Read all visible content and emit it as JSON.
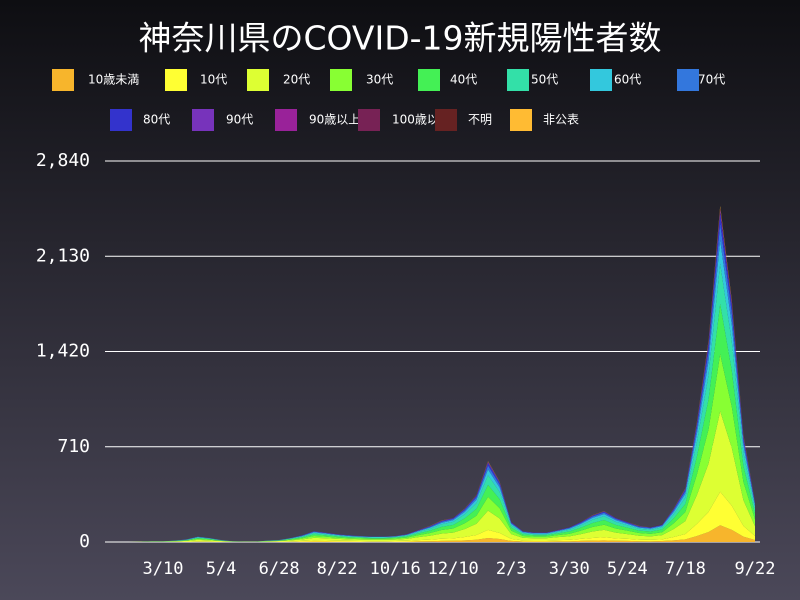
{
  "chart_data": {
    "type": "stacked-area",
    "title": "神奈川県のCOVID-19新規陽性者数",
    "categories": [
      null,
      null,
      null,
      null,
      null,
      "3/10",
      null,
      null,
      null,
      null,
      "5/4",
      null,
      null,
      null,
      null,
      "6/28",
      null,
      null,
      null,
      null,
      "8/22",
      null,
      null,
      null,
      null,
      "10/16",
      null,
      null,
      null,
      null,
      "12/10",
      null,
      null,
      null,
      null,
      "2/3",
      null,
      null,
      null,
      null,
      "3/30",
      null,
      null,
      null,
      null,
      "5/24",
      null,
      null,
      null,
      null,
      "7/18",
      null,
      null,
      null,
      null,
      null,
      "9/22"
    ],
    "ylim": [
      0,
      2840
    ],
    "yticks": [
      0,
      710,
      {
        "value": 1420,
        "label": "1,420"
      },
      {
        "value": 2130,
        "label": "2,130"
      },
      {
        "value": 2840,
        "label": "2,840"
      }
    ],
    "grid": true,
    "series": [
      {
        "name": "10歳未満",
        "color": "#f7b52c",
        "values": [
          0,
          0,
          0,
          0,
          0,
          0,
          1,
          1,
          2,
          2,
          1,
          0,
          0,
          0,
          1,
          1,
          2,
          3,
          4,
          4,
          3,
          3,
          2,
          2,
          2,
          2,
          3,
          5,
          6,
          8,
          9,
          12,
          17,
          30,
          22,
          8,
          4,
          4,
          4,
          5,
          5,
          8,
          10,
          12,
          9,
          8,
          6,
          5,
          7,
          12,
          20,
          45,
          75,
          125,
          90,
          40,
          15
        ]
      },
      {
        "name": "10代",
        "color": "#ffff33",
        "values": [
          0,
          0,
          0,
          0,
          1,
          1,
          1,
          2,
          4,
          3,
          2,
          1,
          0,
          0,
          1,
          2,
          3,
          5,
          8,
          7,
          6,
          5,
          5,
          4,
          4,
          5,
          6,
          9,
          12,
          16,
          18,
          25,
          35,
          60,
          45,
          15,
          8,
          7,
          7,
          9,
          11,
          15,
          20,
          23,
          18,
          15,
          12,
          11,
          13,
          25,
          40,
          90,
          150,
          250,
          180,
          80,
          30
        ]
      },
      {
        "name": "20代",
        "color": "#ddff33",
        "values": [
          0,
          0,
          0,
          1,
          1,
          1,
          2,
          5,
          10,
          7,
          4,
          1,
          1,
          1,
          2,
          4,
          7,
          12,
          19,
          17,
          14,
          12,
          11,
          10,
          10,
          11,
          14,
          22,
          29,
          38,
          43,
          60,
          84,
          144,
          108,
          36,
          19,
          17,
          17,
          22,
          26,
          36,
          48,
          55,
          43,
          36,
          29,
          26,
          31,
          60,
          96,
          216,
          360,
          600,
          432,
          192,
          72
        ]
      },
      {
        "name": "30代",
        "color": "#88ff33",
        "values": [
          0,
          0,
          0,
          1,
          1,
          1,
          2,
          3,
          7,
          5,
          2,
          1,
          1,
          1,
          2,
          2,
          5,
          8,
          14,
          12,
          10,
          8,
          8,
          7,
          7,
          8,
          10,
          15,
          20,
          27,
          31,
          43,
          60,
          102,
          77,
          26,
          14,
          12,
          12,
          15,
          19,
          26,
          34,
          39,
          31,
          26,
          20,
          19,
          22,
          43,
          68,
          153,
          255,
          425,
          306,
          136,
          51
        ]
      },
      {
        "name": "40代",
        "color": "#44f055",
        "values": [
          0,
          0,
          0,
          0,
          1,
          1,
          2,
          3,
          6,
          5,
          2,
          1,
          1,
          1,
          2,
          2,
          5,
          7,
          12,
          10,
          9,
          7,
          7,
          6,
          6,
          7,
          9,
          13,
          18,
          24,
          27,
          37,
          52,
          90,
          68,
          22,
          12,
          10,
          10,
          13,
          17,
          22,
          30,
          35,
          27,
          22,
          18,
          17,
          20,
          37,
          60,
          135,
          225,
          375,
          270,
          120,
          45
        ]
      },
      {
        "name": "50代",
        "color": "#33e0a8",
        "values": [
          0,
          0,
          0,
          0,
          1,
          1,
          1,
          2,
          5,
          4,
          2,
          1,
          0,
          0,
          1,
          2,
          4,
          6,
          10,
          8,
          7,
          6,
          5,
          5,
          5,
          5,
          7,
          11,
          14,
          19,
          22,
          30,
          42,
          72,
          54,
          18,
          10,
          8,
          8,
          11,
          13,
          18,
          24,
          28,
          22,
          18,
          14,
          13,
          16,
          30,
          48,
          108,
          180,
          300,
          216,
          96,
          36
        ]
      },
      {
        "name": "60代",
        "color": "#33c8dd",
        "values": [
          0,
          0,
          0,
          0,
          0,
          0,
          1,
          2,
          3,
          2,
          1,
          0,
          0,
          0,
          1,
          1,
          2,
          4,
          6,
          5,
          4,
          4,
          3,
          3,
          3,
          3,
          4,
          6,
          8,
          11,
          13,
          18,
          25,
          42,
          31,
          10,
          6,
          5,
          5,
          6,
          8,
          10,
          14,
          16,
          13,
          10,
          8,
          8,
          9,
          18,
          28,
          63,
          105,
          175,
          126,
          56,
          21
        ]
      },
      {
        "name": "70代",
        "color": "#3377dd",
        "values": [
          0,
          0,
          0,
          0,
          0,
          0,
          0,
          1,
          2,
          1,
          1,
          0,
          0,
          0,
          0,
          1,
          1,
          3,
          4,
          4,
          3,
          3,
          2,
          2,
          2,
          2,
          3,
          4,
          6,
          8,
          9,
          13,
          18,
          30,
          23,
          7,
          4,
          4,
          4,
          4,
          6,
          7,
          10,
          11,
          9,
          7,
          6,
          6,
          6,
          13,
          20,
          45,
          75,
          125,
          90,
          40,
          15
        ]
      },
      {
        "name": "80代",
        "color": "#3333cc",
        "values": [
          0,
          0,
          0,
          0,
          0,
          0,
          0,
          1,
          1,
          1,
          0,
          0,
          0,
          0,
          0,
          0,
          1,
          2,
          2,
          2,
          2,
          2,
          1,
          1,
          1,
          1,
          2,
          3,
          4,
          5,
          5,
          8,
          11,
          18,
          14,
          5,
          2,
          2,
          2,
          3,
          3,
          5,
          6,
          7,
          5,
          5,
          4,
          3,
          4,
          8,
          12,
          27,
          45,
          75,
          54,
          24,
          9
        ]
      },
      {
        "name": "90代",
        "color": "#7733bb",
        "values": [
          0,
          0,
          0,
          0,
          0,
          0,
          0,
          0,
          0,
          0,
          0,
          0,
          0,
          0,
          0,
          0,
          0,
          0,
          1,
          1,
          1,
          0,
          1,
          0,
          0,
          1,
          1,
          1,
          1,
          2,
          2,
          2,
          3,
          6,
          4,
          2,
          1,
          1,
          1,
          1,
          1,
          2,
          2,
          2,
          2,
          2,
          1,
          1,
          1,
          2,
          4,
          9,
          15,
          25,
          18,
          8,
          3
        ]
      },
      {
        "name": "90歳以上",
        "color": "#992299",
        "values": [
          0,
          0,
          0,
          0,
          0,
          0,
          0,
          0,
          0,
          0,
          0,
          0,
          0,
          0,
          0,
          0,
          0,
          0,
          0,
          0,
          0,
          0,
          0,
          0,
          0,
          0,
          0,
          0,
          0,
          0,
          0,
          0,
          0,
          2,
          0,
          0,
          0,
          0,
          0,
          0,
          0,
          0,
          0,
          0,
          0,
          0,
          0,
          0,
          0,
          0,
          0,
          0,
          3,
          5,
          3,
          0,
          0
        ]
      },
      {
        "name": "100歳以上",
        "color": "#772255",
        "values": [
          0,
          0,
          0,
          0,
          0,
          0,
          0,
          0,
          0,
          0,
          0,
          0,
          0,
          0,
          0,
          0,
          0,
          0,
          0,
          0,
          0,
          0,
          0,
          0,
          0,
          0,
          0,
          0,
          0,
          0,
          0,
          0,
          0,
          0,
          0,
          0,
          0,
          0,
          0,
          0,
          0,
          0,
          0,
          0,
          0,
          0,
          0,
          0,
          0,
          0,
          0,
          0,
          0,
          0,
          0,
          0,
          0
        ]
      },
      {
        "name": "不明",
        "color": "#662222",
        "values": [
          0,
          0,
          0,
          0,
          0,
          0,
          0,
          0,
          0,
          0,
          0,
          0,
          0,
          0,
          0,
          0,
          0,
          0,
          0,
          0,
          1,
          0,
          0,
          0,
          0,
          0,
          1,
          1,
          1,
          1,
          1,
          1,
          2,
          3,
          2,
          1,
          0,
          0,
          0,
          1,
          1,
          1,
          1,
          1,
          1,
          1,
          1,
          1,
          1,
          1,
          2,
          5,
          8,
          13,
          9,
          4,
          2
        ]
      },
      {
        "name": "非公表",
        "color": "#ffbb33",
        "values": [
          0,
          0,
          0,
          0,
          0,
          0,
          0,
          0,
          0,
          0,
          0,
          0,
          0,
          0,
          0,
          0,
          0,
          0,
          0,
          0,
          0,
          0,
          0,
          0,
          0,
          0,
          0,
          0,
          1,
          1,
          0,
          1,
          1,
          3,
          2,
          0,
          0,
          0,
          0,
          0,
          0,
          0,
          1,
          1,
          0,
          0,
          1,
          0,
          0,
          1,
          2,
          4,
          7,
          12,
          9,
          4,
          1
        ]
      }
    ]
  }
}
